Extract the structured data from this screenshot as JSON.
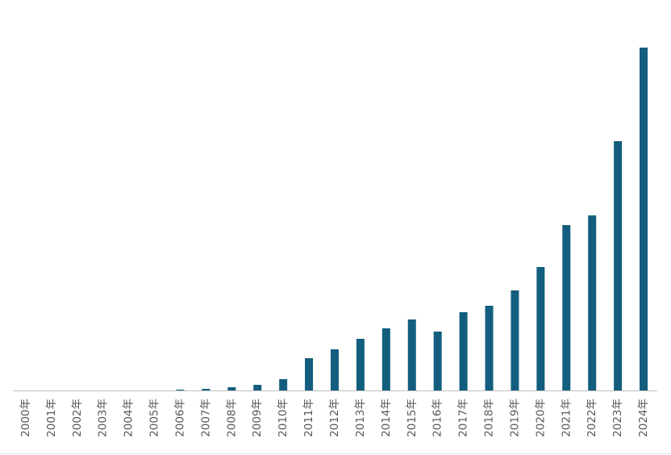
{
  "chart_data": {
    "type": "bar",
    "categories": [
      "2000年",
      "2001年",
      "2002年",
      "2003年",
      "2004年",
      "2005年",
      "2006年",
      "2007年",
      "2008年",
      "2009年",
      "2010年",
      "2011年",
      "2012年",
      "2013年",
      "2014年",
      "2015年",
      "2016年",
      "2017年",
      "2018年",
      "2019年",
      "2020年",
      "2021年",
      "2022年",
      "2023年",
      "2024年"
    ],
    "values": [
      0,
      0,
      0,
      0,
      0,
      0,
      1,
      2,
      4,
      7,
      14,
      40,
      51,
      64,
      77,
      88,
      73,
      97,
      105,
      124,
      153,
      205,
      217,
      309,
      425
    ],
    "color": "#135e7e",
    "ylim": [
      0,
      425
    ]
  }
}
